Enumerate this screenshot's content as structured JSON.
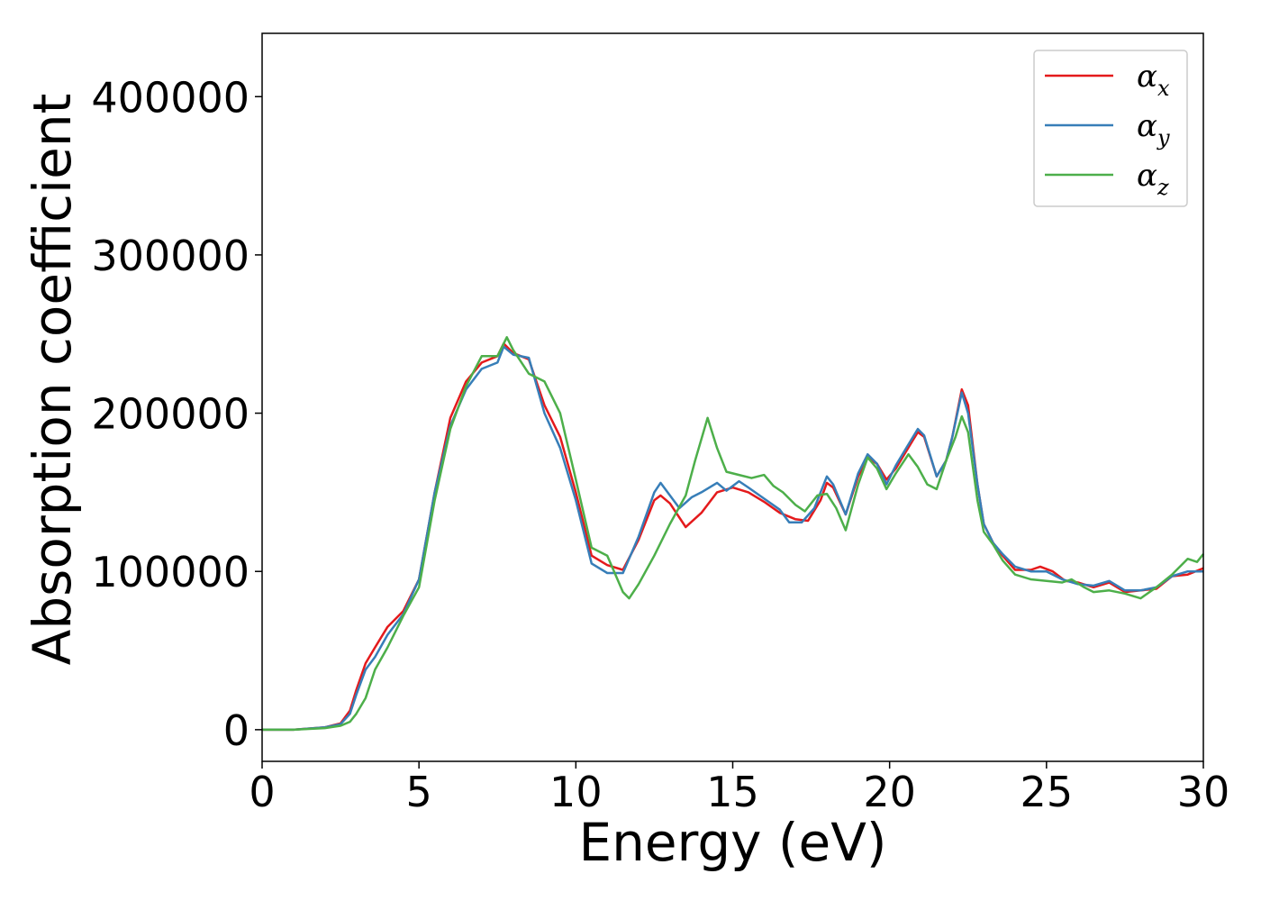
{
  "chart_data": {
    "type": "line",
    "xlabel": "Energy (eV)",
    "ylabel": "Absorption coefficient",
    "xlim": [
      0,
      30
    ],
    "ylim": [
      -20000,
      440000
    ],
    "xticks": [
      0,
      5,
      10,
      15,
      20,
      25,
      30
    ],
    "yticks": [
      0,
      100000,
      200000,
      300000,
      400000
    ],
    "xtick_labels": [
      "0",
      "5",
      "10",
      "15",
      "20",
      "25",
      "30"
    ],
    "ytick_labels": [
      "0",
      "100000",
      "200000",
      "300000",
      "400000"
    ],
    "legend_position": "top-right",
    "grid": false,
    "series": [
      {
        "name": "αx",
        "symbol": "α",
        "subscript": "x",
        "color": "#e41a1c",
        "points": [
          [
            0,
            0
          ],
          [
            1,
            0
          ],
          [
            2,
            1500
          ],
          [
            2.5,
            4000
          ],
          [
            2.8,
            12000
          ],
          [
            3,
            25000
          ],
          [
            3.3,
            42000
          ],
          [
            3.6,
            52000
          ],
          [
            4,
            65000
          ],
          [
            4.5,
            75000
          ],
          [
            5,
            95000
          ],
          [
            5.5,
            150000
          ],
          [
            6,
            197000
          ],
          [
            6.5,
            220000
          ],
          [
            7,
            232000
          ],
          [
            7.5,
            236000
          ],
          [
            7.7,
            244000
          ],
          [
            8,
            238000
          ],
          [
            8.5,
            234000
          ],
          [
            9,
            205000
          ],
          [
            9.5,
            185000
          ],
          [
            10,
            150000
          ],
          [
            10.5,
            110000
          ],
          [
            11,
            104000
          ],
          [
            11.5,
            101000
          ],
          [
            12,
            120000
          ],
          [
            12.5,
            145000
          ],
          [
            12.7,
            148000
          ],
          [
            13,
            143000
          ],
          [
            13.5,
            128000
          ],
          [
            14,
            137000
          ],
          [
            14.5,
            150000
          ],
          [
            15,
            153000
          ],
          [
            15.5,
            150000
          ],
          [
            16,
            144000
          ],
          [
            16.5,
            137000
          ],
          [
            17,
            133000
          ],
          [
            17.4,
            132000
          ],
          [
            17.8,
            145000
          ],
          [
            18,
            156000
          ],
          [
            18.2,
            153000
          ],
          [
            18.6,
            136000
          ],
          [
            19,
            160000
          ],
          [
            19.3,
            172000
          ],
          [
            19.6,
            168000
          ],
          [
            19.9,
            158000
          ],
          [
            20.2,
            165000
          ],
          [
            20.5,
            175000
          ],
          [
            20.9,
            188000
          ],
          [
            21.1,
            185000
          ],
          [
            21.5,
            160000
          ],
          [
            21.8,
            170000
          ],
          [
            22,
            185000
          ],
          [
            22.3,
            215000
          ],
          [
            22.5,
            205000
          ],
          [
            22.8,
            155000
          ],
          [
            23,
            130000
          ],
          [
            23.3,
            118000
          ],
          [
            23.6,
            110000
          ],
          [
            24,
            101000
          ],
          [
            24.5,
            101000
          ],
          [
            24.8,
            103000
          ],
          [
            25.2,
            100000
          ],
          [
            25.6,
            94000
          ],
          [
            26,
            93000
          ],
          [
            26.5,
            90000
          ],
          [
            27,
            93000
          ],
          [
            27.5,
            87000
          ],
          [
            28,
            88000
          ],
          [
            28.5,
            89000
          ],
          [
            29,
            97000
          ],
          [
            29.5,
            98000
          ],
          [
            30,
            102000
          ]
        ]
      },
      {
        "name": "αy",
        "symbol": "α",
        "subscript": "y",
        "color": "#377eb8",
        "points": [
          [
            0,
            0
          ],
          [
            1,
            0
          ],
          [
            2,
            1500
          ],
          [
            2.5,
            3500
          ],
          [
            2.8,
            10000
          ],
          [
            3,
            22000
          ],
          [
            3.3,
            38000
          ],
          [
            3.6,
            46000
          ],
          [
            4,
            60000
          ],
          [
            4.5,
            73000
          ],
          [
            5,
            95000
          ],
          [
            5.5,
            150000
          ],
          [
            6,
            192000
          ],
          [
            6.5,
            215000
          ],
          [
            7,
            228000
          ],
          [
            7.5,
            232000
          ],
          [
            7.7,
            242000
          ],
          [
            8,
            237000
          ],
          [
            8.5,
            235000
          ],
          [
            9,
            200000
          ],
          [
            9.5,
            178000
          ],
          [
            10,
            145000
          ],
          [
            10.5,
            105000
          ],
          [
            11,
            99000
          ],
          [
            11.5,
            99000
          ],
          [
            12,
            122000
          ],
          [
            12.5,
            150000
          ],
          [
            12.7,
            156000
          ],
          [
            13,
            148000
          ],
          [
            13.3,
            140000
          ],
          [
            13.7,
            147000
          ],
          [
            14,
            150000
          ],
          [
            14.5,
            156000
          ],
          [
            14.8,
            151000
          ],
          [
            15.2,
            157000
          ],
          [
            15.5,
            153000
          ],
          [
            16,
            146000
          ],
          [
            16.5,
            139000
          ],
          [
            16.8,
            131000
          ],
          [
            17.2,
            131000
          ],
          [
            17.6,
            140000
          ],
          [
            18,
            160000
          ],
          [
            18.2,
            155000
          ],
          [
            18.6,
            136000
          ],
          [
            19,
            162000
          ],
          [
            19.3,
            174000
          ],
          [
            19.6,
            168000
          ],
          [
            19.9,
            155000
          ],
          [
            20.2,
            167000
          ],
          [
            20.5,
            177000
          ],
          [
            20.9,
            190000
          ],
          [
            21.1,
            186000
          ],
          [
            21.5,
            160000
          ],
          [
            21.8,
            170000
          ],
          [
            22,
            185000
          ],
          [
            22.3,
            213000
          ],
          [
            22.5,
            200000
          ],
          [
            22.8,
            155000
          ],
          [
            23,
            130000
          ],
          [
            23.3,
            118000
          ],
          [
            23.6,
            111000
          ],
          [
            24,
            103000
          ],
          [
            24.5,
            100000
          ],
          [
            25,
            100000
          ],
          [
            25.5,
            95000
          ],
          [
            26,
            92000
          ],
          [
            26.5,
            91000
          ],
          [
            27,
            94000
          ],
          [
            27.5,
            88000
          ],
          [
            28,
            88000
          ],
          [
            28.5,
            90000
          ],
          [
            29,
            97000
          ],
          [
            29.5,
            100000
          ],
          [
            30,
            100000
          ]
        ]
      },
      {
        "name": "αz",
        "symbol": "α",
        "subscript": "z",
        "color": "#4daf4a",
        "points": [
          [
            0,
            0
          ],
          [
            1,
            0
          ],
          [
            2,
            1000
          ],
          [
            2.5,
            2500
          ],
          [
            2.8,
            5000
          ],
          [
            3,
            10000
          ],
          [
            3.3,
            20000
          ],
          [
            3.6,
            38000
          ],
          [
            4,
            52000
          ],
          [
            4.5,
            72000
          ],
          [
            5,
            90000
          ],
          [
            5.5,
            145000
          ],
          [
            6,
            190000
          ],
          [
            6.5,
            217000
          ],
          [
            7,
            236000
          ],
          [
            7.5,
            236000
          ],
          [
            7.8,
            248000
          ],
          [
            8,
            240000
          ],
          [
            8.5,
            225000
          ],
          [
            9,
            220000
          ],
          [
            9.5,
            200000
          ],
          [
            10,
            158000
          ],
          [
            10.5,
            115000
          ],
          [
            11,
            110000
          ],
          [
            11.5,
            87000
          ],
          [
            11.7,
            83000
          ],
          [
            12,
            92000
          ],
          [
            12.5,
            110000
          ],
          [
            13,
            130000
          ],
          [
            13.5,
            148000
          ],
          [
            13.8,
            170000
          ],
          [
            14.2,
            197000
          ],
          [
            14.5,
            178000
          ],
          [
            14.8,
            163000
          ],
          [
            15.2,
            161000
          ],
          [
            15.6,
            159000
          ],
          [
            16,
            161000
          ],
          [
            16.3,
            154000
          ],
          [
            16.6,
            150000
          ],
          [
            17,
            142000
          ],
          [
            17.3,
            138000
          ],
          [
            17.7,
            148000
          ],
          [
            18,
            149000
          ],
          [
            18.3,
            140000
          ],
          [
            18.6,
            126000
          ],
          [
            19,
            155000
          ],
          [
            19.3,
            172000
          ],
          [
            19.6,
            165000
          ],
          [
            19.9,
            152000
          ],
          [
            20.2,
            162000
          ],
          [
            20.6,
            174000
          ],
          [
            20.9,
            166000
          ],
          [
            21.2,
            155000
          ],
          [
            21.5,
            152000
          ],
          [
            21.8,
            170000
          ],
          [
            22.1,
            185000
          ],
          [
            22.3,
            198000
          ],
          [
            22.5,
            188000
          ],
          [
            22.8,
            145000
          ],
          [
            23,
            125000
          ],
          [
            23.3,
            117000
          ],
          [
            23.6,
            107000
          ],
          [
            24,
            98000
          ],
          [
            24.5,
            95000
          ],
          [
            25,
            94000
          ],
          [
            25.5,
            93000
          ],
          [
            25.8,
            95000
          ],
          [
            26.2,
            90000
          ],
          [
            26.5,
            87000
          ],
          [
            27,
            88000
          ],
          [
            27.5,
            86000
          ],
          [
            28,
            83000
          ],
          [
            28.5,
            90000
          ],
          [
            29,
            98000
          ],
          [
            29.5,
            108000
          ],
          [
            29.8,
            106000
          ],
          [
            30,
            111000
          ]
        ]
      }
    ]
  }
}
